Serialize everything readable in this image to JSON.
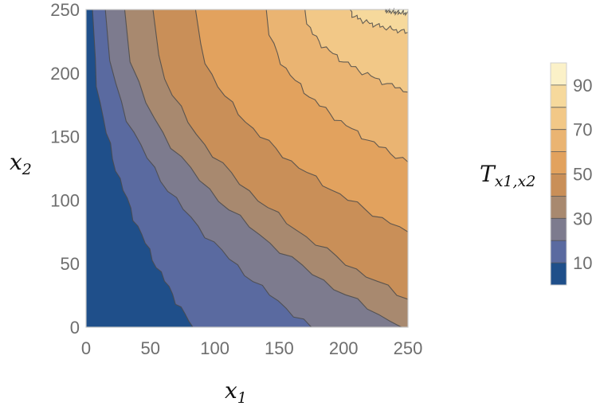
{
  "chart_data": {
    "type": "contour",
    "title": "",
    "xlabel": "x",
    "xlabel_sub": "1",
    "ylabel": "x",
    "ylabel_sub": "2",
    "xlim": [
      0,
      250
    ],
    "ylim": [
      0,
      250
    ],
    "x_ticks": [
      "0",
      "50",
      "100",
      "150",
      "200",
      "250"
    ],
    "y_ticks": [
      "0",
      "50",
      "100",
      "150",
      "200",
      "250"
    ],
    "contour_levels": [
      10,
      20,
      30,
      40,
      50,
      60,
      70,
      80,
      90
    ],
    "contour_lines_x1_at_x2_0": [
      83,
      175,
      245
    ],
    "contour_lines_x1_at_x2_250": [
      5,
      15,
      30,
      52,
      85,
      140,
      170,
      205,
      232
    ],
    "colorbar": {
      "label": "T",
      "label_sub": "x1,x2",
      "tick_labels": [
        "10",
        "30",
        "50",
        "70",
        "90"
      ],
      "band_colors": [
        "#1f4f8a",
        "#5a6aa0",
        "#7d7b8e",
        "#a8896f",
        "#c98f58",
        "#e2a25e",
        "#eab472",
        "#f2c887",
        "#f6d99c",
        "#fbf1c8"
      ]
    },
    "grid": false,
    "legend_placement": "right"
  }
}
